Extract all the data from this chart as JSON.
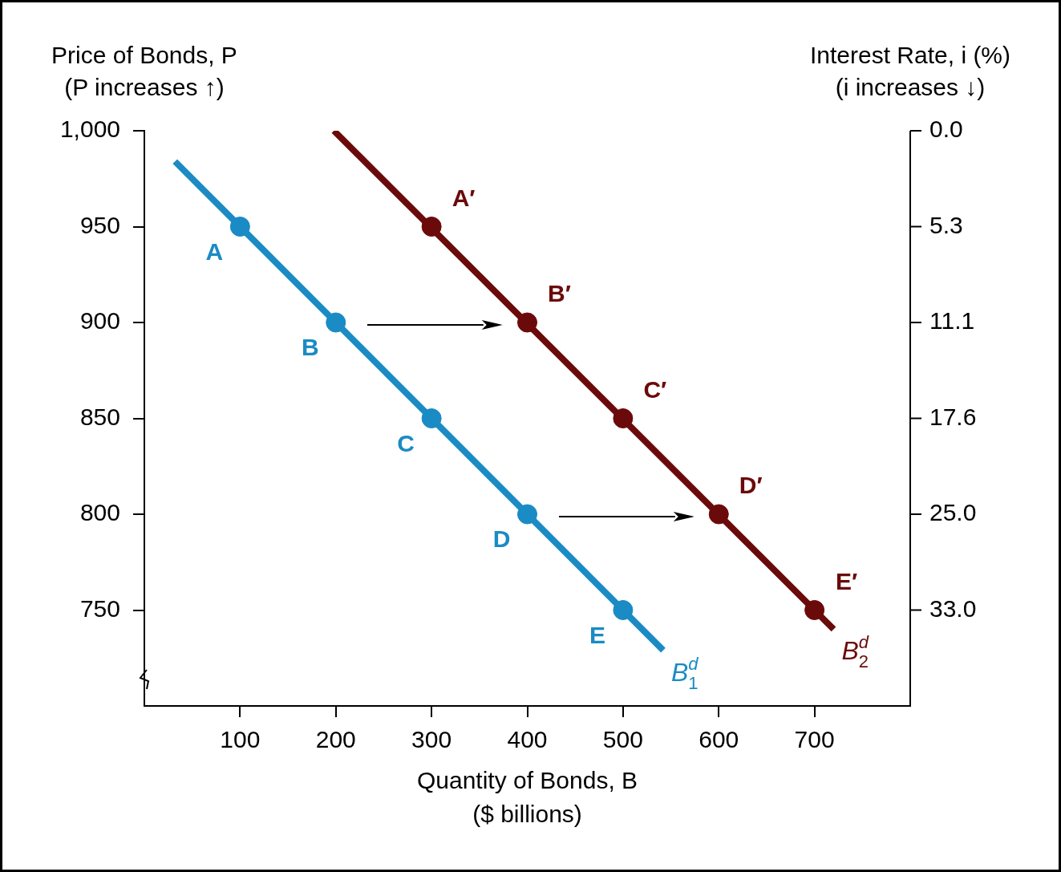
{
  "chart_data": {
    "type": "line",
    "xlabel": "Quantity of Bonds, B\n($ billions)",
    "ylabel": "Price of Bonds, P\n(P increases ↑)",
    "y2label": "Interest Rate, i (%)\n(i increases ↓)",
    "xlim": [
      0,
      800
    ],
    "xticks": [
      100,
      200,
      300,
      400,
      500,
      600,
      700
    ],
    "ylim": [
      700,
      1000
    ],
    "yticks": [
      {
        "value": 1000,
        "label": "1,000"
      },
      950,
      900,
      850,
      800,
      750
    ],
    "series": [
      {
        "name": "B$^{d}$$_{1}$",
        "color": "#1a8bc4",
        "marker": "none",
        "x": [
          32,
          542
        ],
        "values": [
          984,
          729
        ]
      },
      {
        "name": "B$^{d}$$_{2}$",
        "color": "#6b0a0a",
        "marker": "none",
        "x": [
          198,
          720
        ],
        "values": [
          1000,
          740
        ]
      },
      {
        "type": "scatter",
        "color": "#1a8bc4",
        "x": [
          100,
          200,
          300,
          400,
          500
        ],
        "values": [
          950,
          900,
          850,
          800,
          750
        ]
      },
      {
        "type": "scatter",
        "color": "#6b0a0a",
        "x": [
          300,
          400,
          500,
          600,
          700
        ],
        "values": [
          950,
          900,
          850,
          800,
          750
        ]
      }
    ],
    "annotations": [
      {
        "text": "A",
        "x": 100,
        "y": 950
      },
      {
        "text": "B",
        "x": 200,
        "y": 900
      },
      {
        "text": "C",
        "x": 300,
        "y": 850
      },
      {
        "text": "D",
        "x": 400,
        "y": 800
      },
      {
        "text": "E",
        "x": 500,
        "y": 750
      },
      {
        "text": "A′",
        "x": 300,
        "y": 950
      },
      {
        "text": "B′",
        "x": 400,
        "y": 900
      },
      {
        "text": "C′",
        "x": 500,
        "y": 850
      },
      {
        "text": "D′",
        "x": 600,
        "y": 800
      },
      {
        "text": "E′",
        "x": 700,
        "y": 750
      },
      "0.0",
      "5.3",
      "11.1",
      "17.6",
      "25.0",
      "33.0"
    ],
    "marker": "circle",
    "legend": false
  }
}
